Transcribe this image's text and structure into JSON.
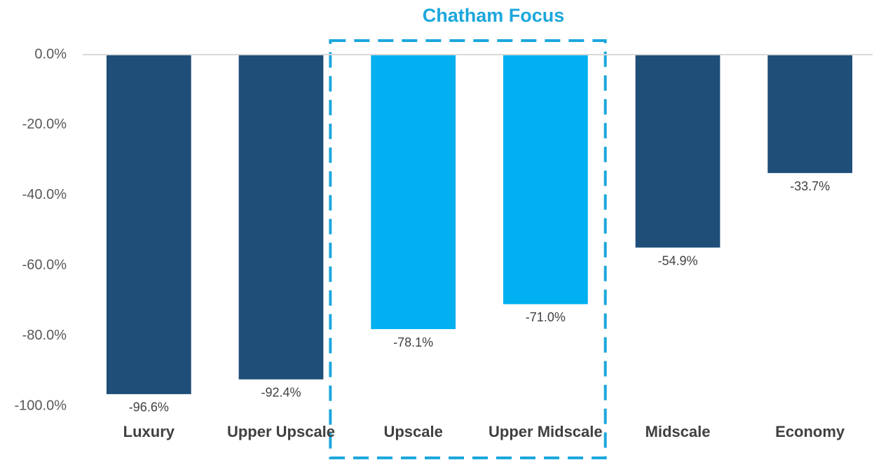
{
  "chart_data": {
    "type": "bar",
    "annotation": "Chatham Focus",
    "categories": [
      "Luxury",
      "Upper Upscale",
      "Upscale",
      "Upper Midscale",
      "Midscale",
      "Economy"
    ],
    "values": [
      -96.6,
      -92.4,
      -78.1,
      -71.0,
      -54.9,
      -33.7
    ],
    "value_labels": [
      "-96.6%",
      "-92.4%",
      "-78.1%",
      "-71.0%",
      "-54.9%",
      "-33.7%"
    ],
    "colors": [
      "#1f4e79",
      "#1f4e79",
      "#00b0f0",
      "#00b0f0",
      "#1f4e79",
      "#1f4e79"
    ],
    "ylim": [
      -100,
      0
    ],
    "yticks": [
      {
        "value": 0,
        "label": "0.0%"
      },
      {
        "value": -20,
        "label": "-20.0%"
      },
      {
        "value": -40,
        "label": "-40.0%"
      },
      {
        "value": -60,
        "label": "-60.0%"
      },
      {
        "value": -80,
        "label": "-80.0%"
      },
      {
        "value": -100,
        "label": "-100.0%"
      }
    ],
    "grid": false
  }
}
